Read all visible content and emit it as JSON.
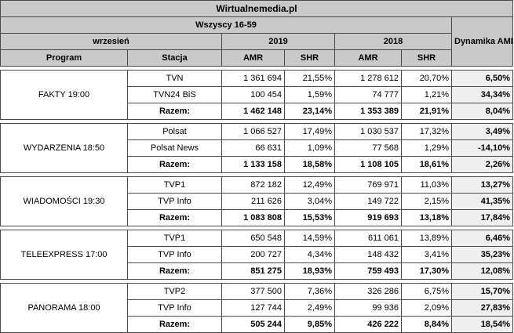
{
  "site_title": "Wirtualnemedia.pl",
  "group": "Wszyscy 16-59",
  "period": "wrzesień",
  "year1": "2019",
  "year2": "2018",
  "dyn_header": "Dynamika AMR (w proc.)",
  "col_program": "Program",
  "col_stacja": "Stacja",
  "col_amr": "AMR",
  "col_shr": "SHR",
  "programs": [
    {
      "name": "FAKTY 19:00",
      "rows": [
        {
          "stacja": "TVN",
          "amr19": "1 361 694",
          "shr19": "21,55%",
          "amr18": "1 278 612",
          "shr18": "20,70%",
          "dyn": "6,50%"
        },
        {
          "stacja": "TVN24 BiS",
          "amr19": "100 454",
          "shr19": "1,59%",
          "amr18": "74 777",
          "shr18": "1,21%",
          "dyn": "34,34%"
        },
        {
          "stacja": "Razem:",
          "amr19": "1 462 148",
          "shr19": "23,14%",
          "amr18": "1 353 389",
          "shr18": "21,91%",
          "dyn": "8,04%"
        }
      ]
    },
    {
      "name": "WYDARZENIA 18:50",
      "rows": [
        {
          "stacja": "Polsat",
          "amr19": "1 066 527",
          "shr19": "17,49%",
          "amr18": "1 030 537",
          "shr18": "17,32%",
          "dyn": "3,49%"
        },
        {
          "stacja": "Polsat News",
          "amr19": "66 631",
          "shr19": "1,09%",
          "amr18": "77 568",
          "shr18": "1,29%",
          "dyn": "-14,10%"
        },
        {
          "stacja": "Razem:",
          "amr19": "1 133 158",
          "shr19": "18,58%",
          "amr18": "1 108 105",
          "shr18": "18,61%",
          "dyn": "2,26%"
        }
      ]
    },
    {
      "name": "WIADOMOŚCI 19:30",
      "rows": [
        {
          "stacja": "TVP1",
          "amr19": "872 182",
          "shr19": "12,49%",
          "amr18": "769 971",
          "shr18": "11,03%",
          "dyn": "13,27%"
        },
        {
          "stacja": "TVP Info",
          "amr19": "211 626",
          "shr19": "3,04%",
          "amr18": "149 722",
          "shr18": "2,15%",
          "dyn": "41,35%"
        },
        {
          "stacja": "Razem:",
          "amr19": "1 083 808",
          "shr19": "15,53%",
          "amr18": "919 693",
          "shr18": "13,18%",
          "dyn": "17,84%"
        }
      ]
    },
    {
      "name": "TELEEXPRESS 17:00",
      "rows": [
        {
          "stacja": "TVP1",
          "amr19": "650 548",
          "shr19": "14,59%",
          "amr18": "611 061",
          "shr18": "13,89%",
          "dyn": "6,46%"
        },
        {
          "stacja": "TVP Info",
          "amr19": "200 727",
          "shr19": "4,34%",
          "amr18": "148 432",
          "shr18": "3,41%",
          "dyn": "35,23%"
        },
        {
          "stacja": "Razem:",
          "amr19": "851 275",
          "shr19": "18,93%",
          "amr18": "759 493",
          "shr18": "17,30%",
          "dyn": "12,08%"
        }
      ]
    },
    {
      "name": "PANORAMA 18:00",
      "rows": [
        {
          "stacja": "TVP2",
          "amr19": "377 500",
          "shr19": "7,36%",
          "amr18": "326 286",
          "shr18": "6,75%",
          "dyn": "15,70%"
        },
        {
          "stacja": "TVP Info",
          "amr19": "127 744",
          "shr19": "2,49%",
          "amr18": "99 936",
          "shr18": "2,09%",
          "dyn": "27,83%"
        },
        {
          "stacja": "Razem:",
          "amr19": "505 244",
          "shr19": "9,85%",
          "amr18": "426 222",
          "shr18": "8,84%",
          "dyn": "18,54%"
        }
      ]
    }
  ]
}
